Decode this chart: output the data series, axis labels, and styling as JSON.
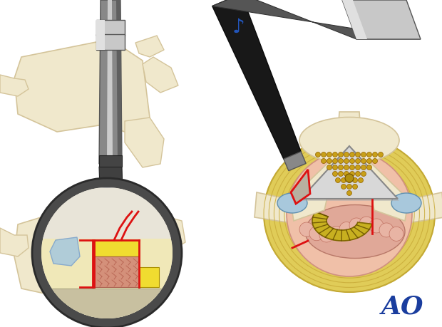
{
  "bg_color": "#ffffff",
  "ao_text": "AO",
  "ao_color": "#1a3d9e",
  "spine_color": "#f0e8cc",
  "spine_outline": "#d4c49a",
  "dark_gray": "#555555",
  "medium_gray": "#888888",
  "light_gray": "#cccccc",
  "silver": "#c8c8c8",
  "dark_tool": "#1a1a1a",
  "red": "#dd1111",
  "yellow_bright": "#f0e040",
  "light_blue": "#b0ccd8",
  "pink": "#e8a898",
  "annulus_yellow": "#e8d468",
  "olive_yellow": "#b8a820",
  "bone_pink": "#d4907a",
  "cage_silver": "#d0d0d0",
  "cage_gold": "#c8a018",
  "note_blue": "#2255bb",
  "inner_cream": "#f5f0e0",
  "gray_tone": "#666666"
}
